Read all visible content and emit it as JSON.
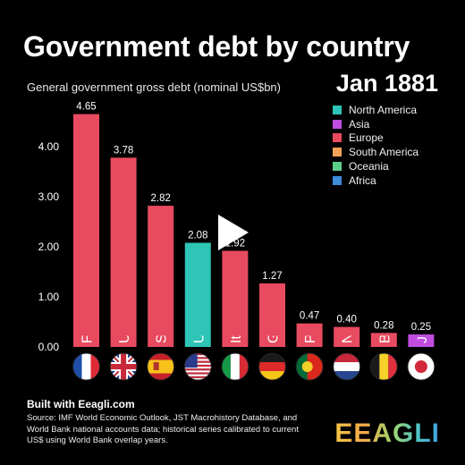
{
  "header": {
    "title": "Government debt by country",
    "subtitle": "General government gross debt (nominal US$bn)",
    "date": "Jan 1881"
  },
  "legend": [
    {
      "label": "North America",
      "color": "#2ec4b6"
    },
    {
      "label": "Asia",
      "color": "#c04de0"
    },
    {
      "label": "Europe",
      "color": "#e84a5f"
    },
    {
      "label": "South America",
      "color": "#f4a259"
    },
    {
      "label": "Oceania",
      "color": "#5ccf8a"
    },
    {
      "label": "Africa",
      "color": "#3d8bd9"
    }
  ],
  "chart_data": {
    "type": "bar",
    "title": "Government debt by country",
    "ylabel": "General government gross debt (nominal US$bn)",
    "ylim": [
      0,
      4.65
    ],
    "yticks": [
      "0.00",
      "1.00",
      "2.00",
      "3.00",
      "4.00"
    ],
    "grid": false,
    "legend_position": "top-right",
    "categories": [
      "France",
      "United Kingdom",
      "Spain",
      "United States",
      "Italy",
      "Germany",
      "Pol",
      "Ne",
      "B",
      "J"
    ],
    "values": [
      4.65,
      3.78,
      2.82,
      2.08,
      1.92,
      1.27,
      0.47,
      0.4,
      0.28,
      0.25
    ],
    "value_labels": [
      "4.65",
      "3.78",
      "2.82",
      "2.08",
      "1.92",
      "1.27",
      "0.47",
      "0.40",
      "0.28",
      "0.25"
    ],
    "regions": [
      "Europe",
      "Europe",
      "Europe",
      "North America",
      "Europe",
      "Europe",
      "Europe",
      "Europe",
      "Europe",
      "Asia"
    ],
    "flags": [
      "france-flag-icon",
      "uk-flag-icon",
      "spain-flag-icon",
      "usa-flag-icon",
      "italy-flag-icon",
      "germany-flag-icon",
      "portugal-flag-icon",
      "netherlands-flag-icon",
      "belgium-flag-icon",
      "japan-flag-icon"
    ]
  },
  "footer": {
    "built_with": "Built with Eeagli.com",
    "source": "Source: IMF World Economic Outlook, JST Macrohistory Database, and World Bank national accounts data; historical series calibrated to current US$ using World Bank overlap years."
  },
  "brand": "EEAGLI",
  "media": {
    "play_icon": "play-icon"
  }
}
